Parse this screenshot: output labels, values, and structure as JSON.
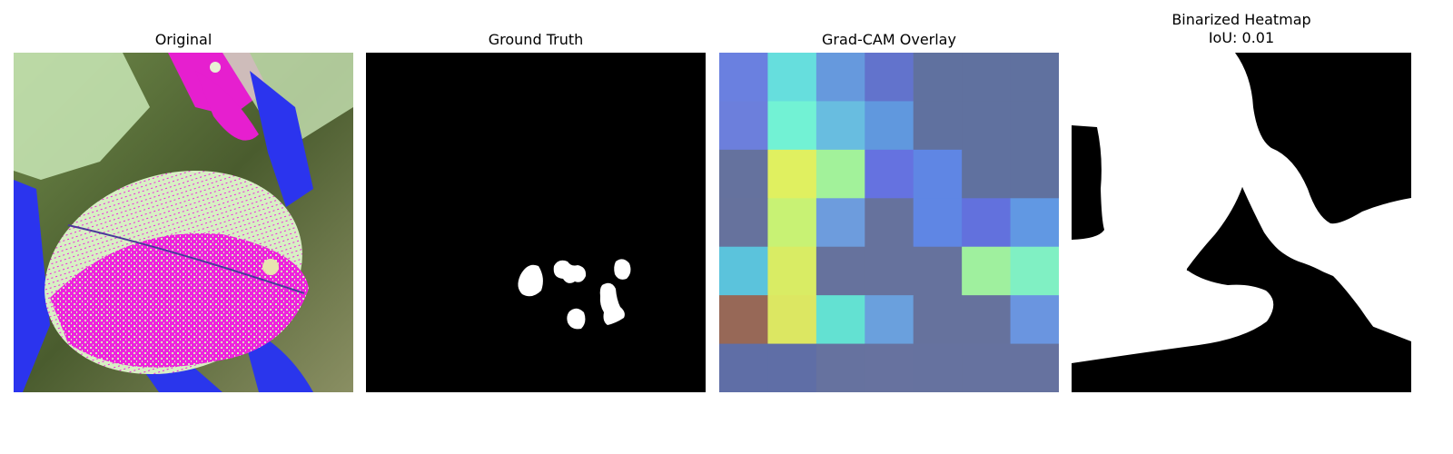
{
  "panels": [
    {
      "title": "Original"
    },
    {
      "title": "Ground Truth"
    },
    {
      "title": "Grad-CAM Overlay"
    },
    {
      "title": "Binarized Heatmap",
      "subtitle": "IoU: 0.01"
    }
  ],
  "gradcam": {
    "grid": [
      [
        "#6a80e0",
        "#66dedd",
        "#6699dd",
        "#6273cc",
        "#60719f",
        "#60719f",
        "#60719f"
      ],
      [
        "#6c7fdc",
        "#72f2d4",
        "#68bde0",
        "#6098de",
        "#60719f",
        "#60719f",
        "#60719f"
      ],
      [
        "#65729e",
        "#e0f060",
        "#a2f29a",
        "#6572e0",
        "#5f86e4",
        "#60719f",
        "#60719f"
      ],
      [
        "#66729d",
        "#c8f274",
        "#6d9cdd",
        "#66729d",
        "#5f86e4",
        "#6271dd",
        "#6198e3"
      ],
      [
        "#5bc3dc",
        "#d9ec64",
        "#66729d",
        "#66729d",
        "#66729d",
        "#9ff09e",
        "#80f0c3"
      ],
      [
        "#976857",
        "#dce762",
        "#63e1d2",
        "#6aa0dd",
        "#66729d",
        "#66729d",
        "#6a95e0"
      ],
      [
        "#5f6ea6",
        "#5f6ea6",
        "#66729f",
        "#67729f",
        "#66729f",
        "#66729f",
        "#66729f"
      ]
    ]
  }
}
